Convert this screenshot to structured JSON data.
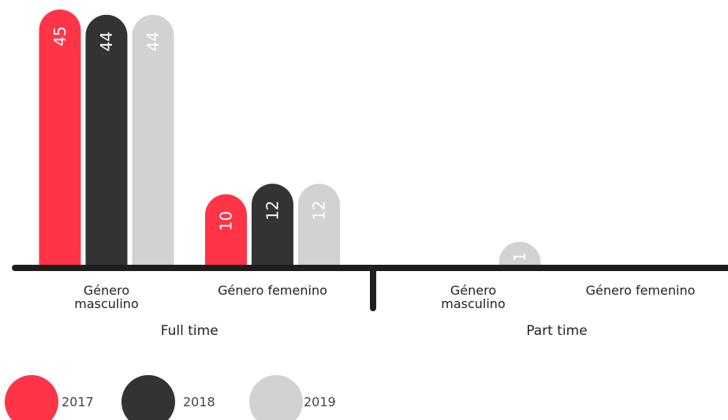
{
  "chart_data": {
    "type": "bar",
    "groups": [
      {
        "name": "Full time",
        "categories": [
          "Género masculino",
          "Género femenino"
        ]
      },
      {
        "name": "Part time",
        "categories": [
          "Género masculino",
          "Género femenino"
        ]
      }
    ],
    "series": [
      {
        "name": "2017",
        "color": "#ff3447",
        "values": [
          45,
          10,
          null,
          null
        ]
      },
      {
        "name": "2018",
        "color": "#333333",
        "values": [
          44,
          12,
          null,
          null
        ]
      },
      {
        "name": "2019",
        "color": "#d1d2d4",
        "values": [
          44,
          12,
          1,
          null
        ]
      }
    ]
  }
}
